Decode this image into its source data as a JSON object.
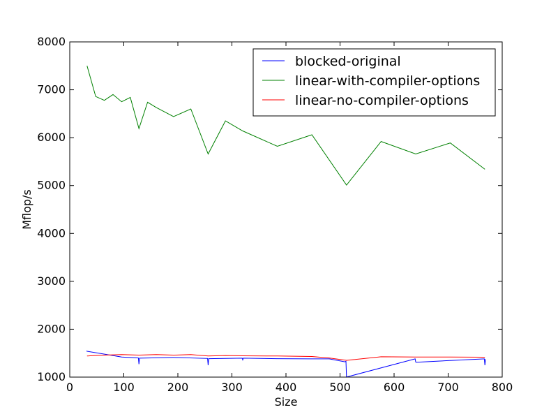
{
  "chart_data": {
    "type": "line",
    "title": "",
    "xlabel": "Size",
    "ylabel": "Mflop/s",
    "xlim": [
      0,
      800
    ],
    "ylim": [
      1000,
      8000
    ],
    "xticks": [
      0,
      100,
      200,
      300,
      400,
      500,
      600,
      700,
      800
    ],
    "yticks": [
      1000,
      2000,
      3000,
      4000,
      5000,
      6000,
      7000,
      8000
    ],
    "grid": false,
    "legend_position": "top-right",
    "series": [
      {
        "name": "blocked-original",
        "color": "#0000ff",
        "points": [
          [
            31,
            1545
          ],
          [
            32,
            1540
          ],
          [
            96,
            1420
          ],
          [
            127,
            1400
          ],
          [
            128,
            1270
          ],
          [
            129,
            1395
          ],
          [
            191,
            1410
          ],
          [
            192,
            1410
          ],
          [
            255,
            1390
          ],
          [
            256,
            1250
          ],
          [
            257,
            1385
          ],
          [
            319,
            1395
          ],
          [
            320,
            1360
          ],
          [
            321,
            1395
          ],
          [
            383,
            1385
          ],
          [
            384,
            1385
          ],
          [
            447,
            1380
          ],
          [
            448,
            1380
          ],
          [
            480,
            1380
          ],
          [
            509,
            1320
          ],
          [
            511,
            1330
          ],
          [
            512,
            1000
          ],
          [
            513,
            1005
          ],
          [
            639,
            1380
          ],
          [
            640,
            1315
          ],
          [
            641,
            1310
          ],
          [
            703,
            1345
          ],
          [
            704,
            1345
          ],
          [
            767,
            1380
          ],
          [
            768,
            1250
          ],
          [
            769,
            1375
          ]
        ]
      },
      {
        "name": "linear-with-compiler-options",
        "color": "#008000",
        "points": [
          [
            32,
            7500
          ],
          [
            48,
            6860
          ],
          [
            64,
            6780
          ],
          [
            80,
            6900
          ],
          [
            96,
            6750
          ],
          [
            112,
            6840
          ],
          [
            128,
            6190
          ],
          [
            144,
            6740
          ],
          [
            160,
            6630
          ],
          [
            192,
            6440
          ],
          [
            224,
            6600
          ],
          [
            256,
            5660
          ],
          [
            288,
            6350
          ],
          [
            320,
            6140
          ],
          [
            384,
            5820
          ],
          [
            448,
            6060
          ],
          [
            512,
            5010
          ],
          [
            576,
            5920
          ],
          [
            640,
            5660
          ],
          [
            704,
            5890
          ],
          [
            768,
            5340
          ]
        ]
      },
      {
        "name": "linear-no-compiler-options",
        "color": "#ff0000",
        "points": [
          [
            32,
            1440
          ],
          [
            64,
            1460
          ],
          [
            96,
            1470
          ],
          [
            128,
            1460
          ],
          [
            160,
            1470
          ],
          [
            192,
            1460
          ],
          [
            224,
            1470
          ],
          [
            256,
            1440
          ],
          [
            288,
            1450
          ],
          [
            320,
            1445
          ],
          [
            384,
            1440
          ],
          [
            448,
            1430
          ],
          [
            480,
            1400
          ],
          [
            512,
            1350
          ],
          [
            576,
            1425
          ],
          [
            640,
            1420
          ],
          [
            704,
            1420
          ],
          [
            768,
            1415
          ]
        ]
      }
    ]
  }
}
